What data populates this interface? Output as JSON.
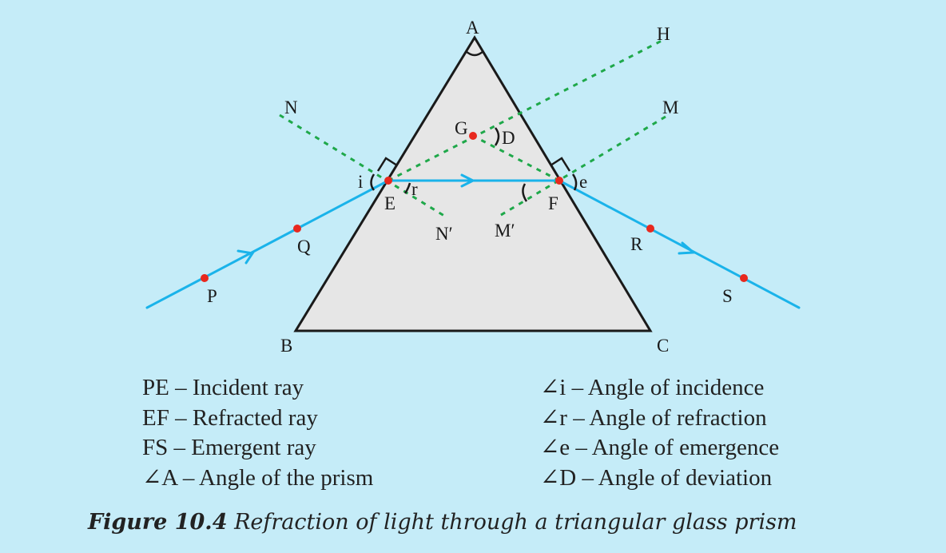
{
  "points": {
    "A": "A",
    "B": "B",
    "C": "C",
    "E": "E",
    "F": "F",
    "G": "G",
    "H": "H",
    "N": "N",
    "N_prime": "N′",
    "M": "M",
    "M_prime": "M′",
    "P": "P",
    "Q": "Q",
    "R": "R",
    "S": "S"
  },
  "angle_labels": {
    "i": "i",
    "r": "r",
    "e": "e",
    "D": "D"
  },
  "legend_left": [
    "PE – Incident ray",
    "EF – Refracted ray",
    "FS – Emergent ray",
    "∠A – Angle of the prism"
  ],
  "legend_right": [
    "∠i – Angle of incidence",
    "∠r – Angle of refraction",
    "∠e – Angle of emergence",
    "∠D – Angle of deviation"
  ],
  "caption": {
    "figure_label": "Figure 10.4",
    "text": "Refraction of light through a triangular glass prism"
  },
  "colors": {
    "background": "#c5ecf8",
    "prism_fill": "#e6e6e6",
    "ray": "#1ab3ea",
    "normal": "#1fa84a",
    "point": "#e8281e"
  }
}
